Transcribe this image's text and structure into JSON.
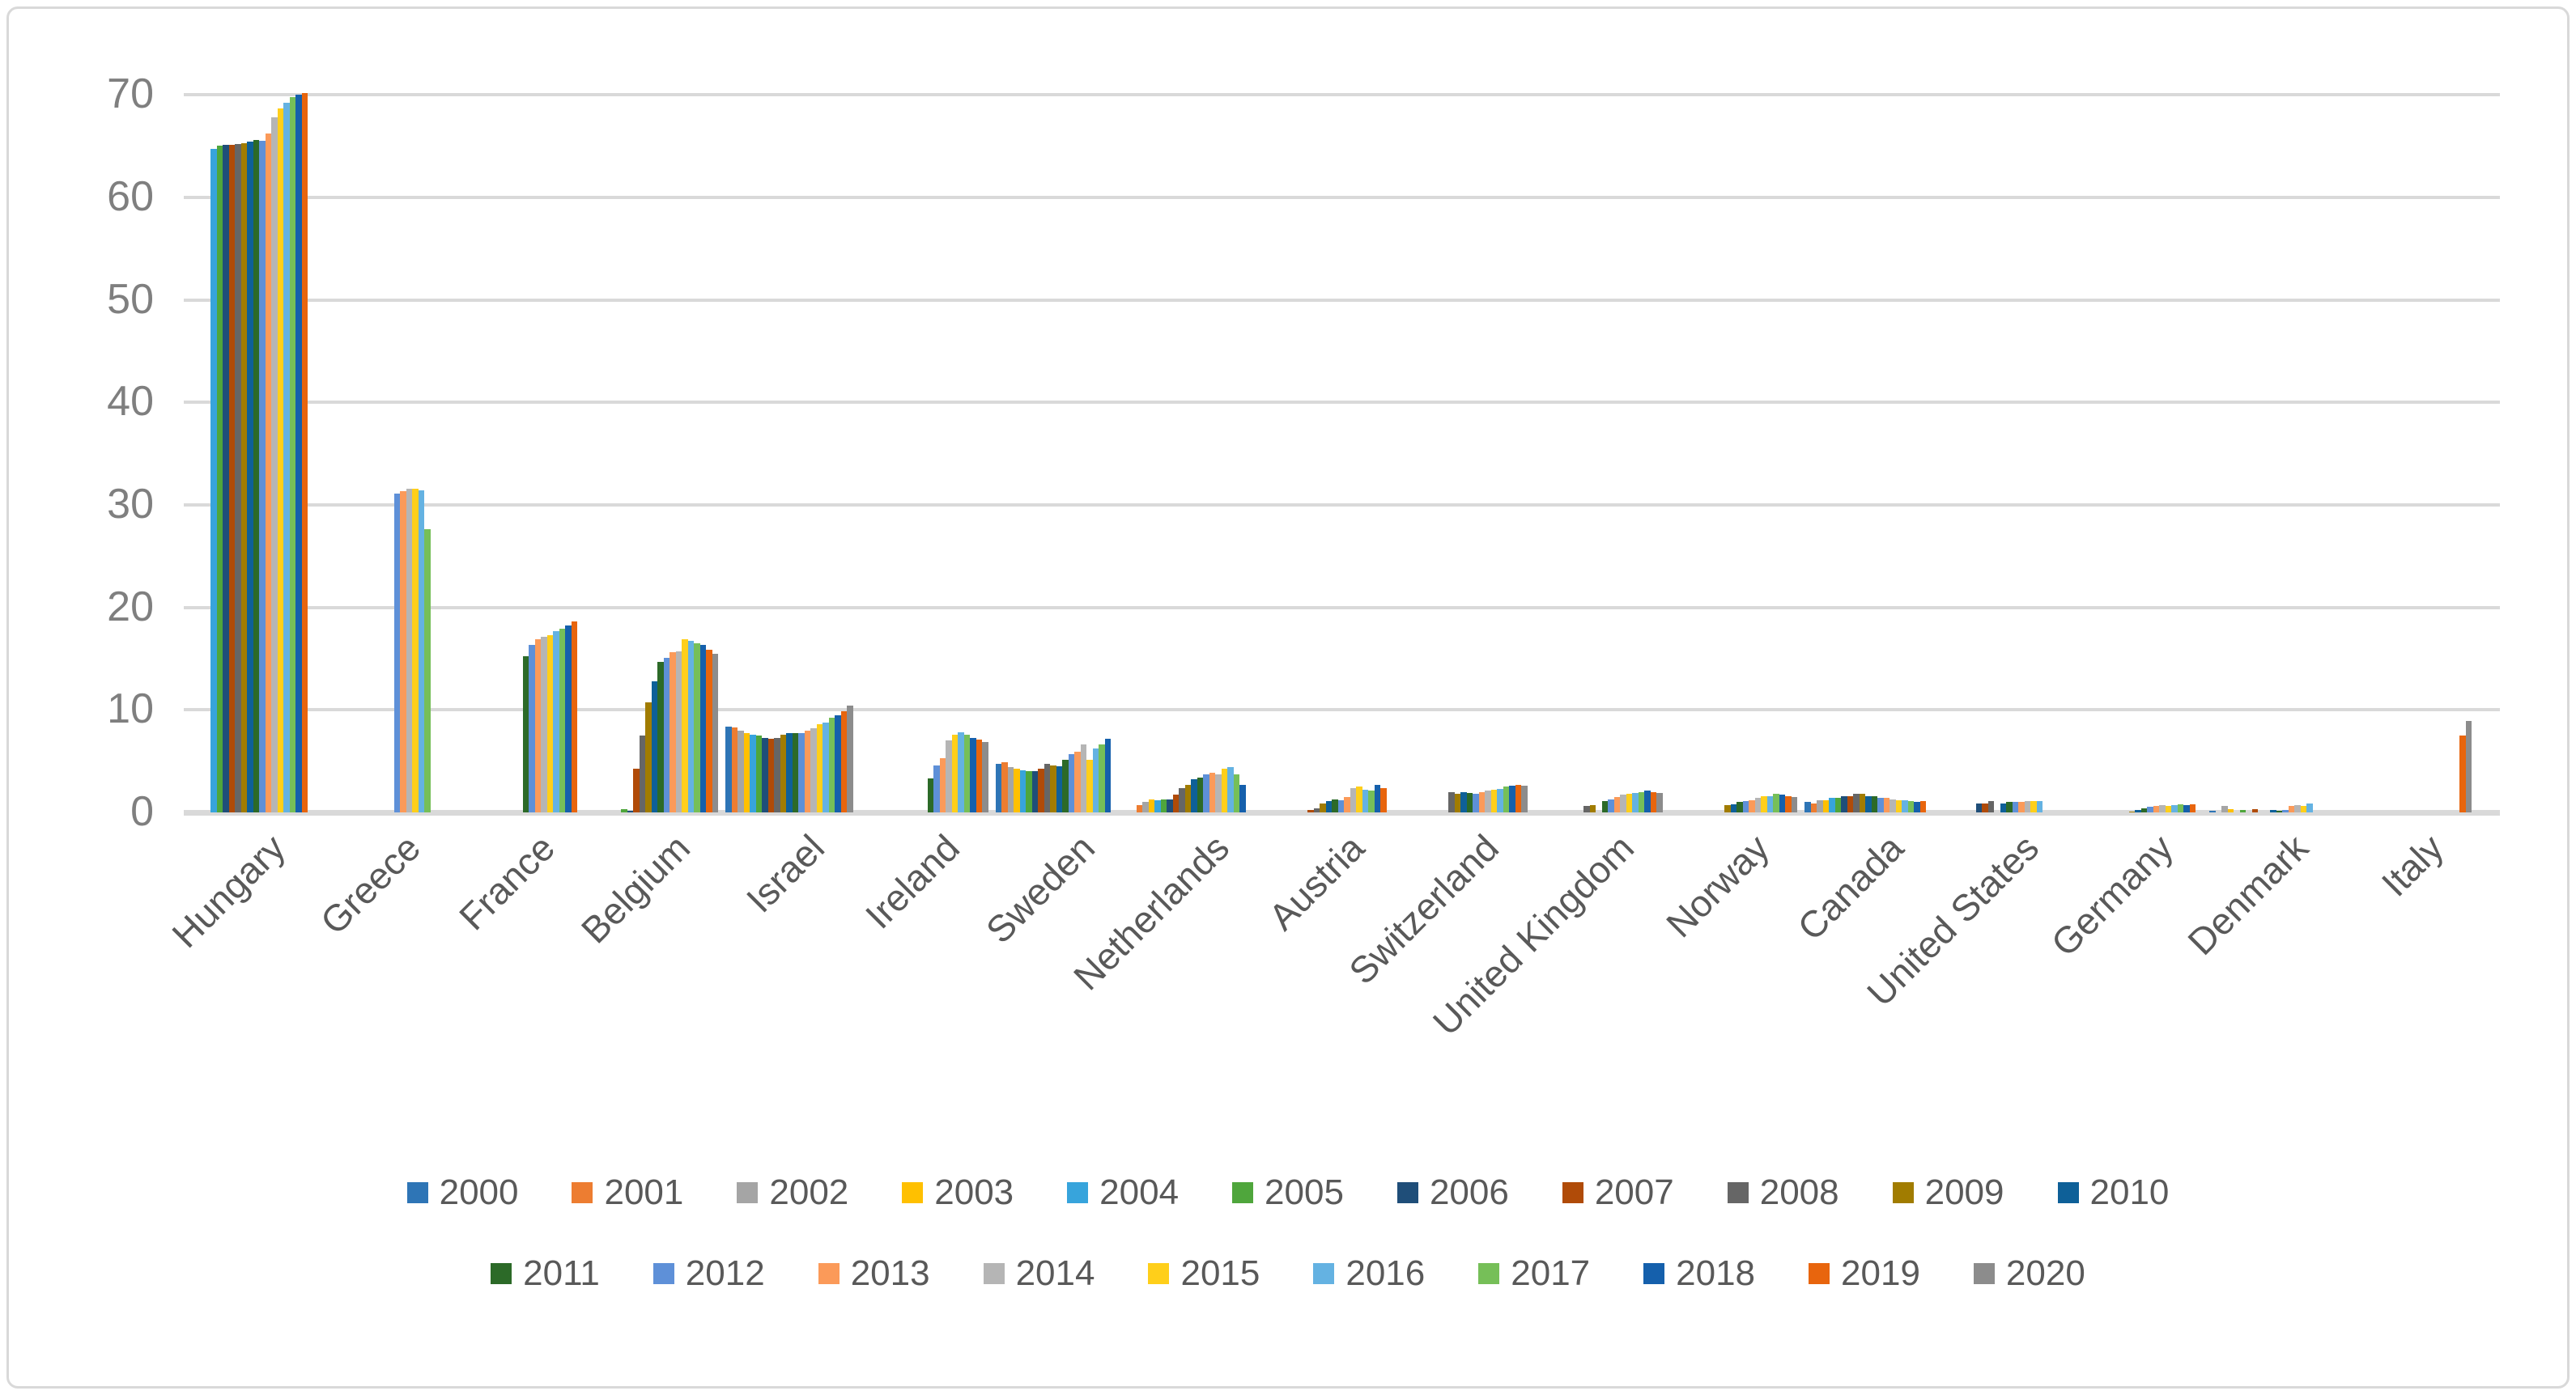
{
  "chart_data": {
    "type": "bar",
    "title": "",
    "xlabel": "",
    "ylabel": "",
    "ylim": [
      0,
      70
    ],
    "y_ticks": [
      0,
      10,
      20,
      30,
      40,
      50,
      60,
      70
    ],
    "grid": true,
    "legend_position": "bottom",
    "legend_rows": [
      [
        "2000",
        "2001",
        "2002",
        "2003",
        "2004",
        "2005",
        "2006",
        "2007",
        "2008",
        "2009",
        "2010"
      ],
      [
        "2011",
        "2012",
        "2013",
        "2014",
        "2015",
        "2016",
        "2017",
        "2018",
        "2019",
        "2020"
      ]
    ],
    "years": [
      "2000",
      "2001",
      "2002",
      "2003",
      "2004",
      "2005",
      "2006",
      "2007",
      "2008",
      "2009",
      "2010",
      "2011",
      "2012",
      "2013",
      "2014",
      "2015",
      "2016",
      "2017",
      "2018",
      "2019",
      "2020"
    ],
    "year_colors": {
      "2000": "#2E75B6",
      "2001": "#ED7D31",
      "2002": "#A5A5A5",
      "2003": "#FFC000",
      "2004": "#37A4DC",
      "2005": "#4FA63C",
      "2006": "#1F4E79",
      "2007": "#B04B08",
      "2008": "#666666",
      "2009": "#A17C00",
      "2010": "#0E6098",
      "2011": "#2C6A28",
      "2012": "#5E90D8",
      "2013": "#FB9A59",
      "2014": "#B5B5B5",
      "2015": "#FFCF1A",
      "2016": "#64B2E2",
      "2017": "#76BF58",
      "2018": "#1560AC",
      "2019": "#E8650D",
      "2020": "#8C8C8C"
    },
    "categories": [
      "Hungary",
      "Greece",
      "France",
      "Belgium",
      "Israel",
      "Ireland",
      "Sweden",
      "Netherlands",
      "Austria",
      "Switzerland",
      "United Kingdom",
      "Norway",
      "Canada",
      "United States",
      "Germany",
      "Denmark",
      "Italy"
    ],
    "values": {
      "Hungary": {
        "2004": 64.7,
        "2005": 65.0,
        "2006": 65.1,
        "2007": 65.1,
        "2008": 65.2,
        "2009": 65.3,
        "2010": 65.4,
        "2011": 65.6,
        "2012": 65.5,
        "2013": 66.2,
        "2014": 67.8,
        "2015": 68.7,
        "2016": 69.2,
        "2017": 69.8,
        "2018": 70.0,
        "2019": 70.2
      },
      "Greece": {
        "2012": 31.1,
        "2013": 31.3,
        "2014": 31.6,
        "2015": 31.6,
        "2016": 31.4,
        "2017": 27.6
      },
      "France": {
        "2011": 15.2,
        "2012": 16.3,
        "2013": 16.9,
        "2014": 17.1,
        "2015": 17.3,
        "2016": 17.7,
        "2017": 17.9,
        "2018": 18.2,
        "2019": 18.6
      },
      "Belgium": {
        "2005": 0.3,
        "2006": 0.15,
        "2007": 4.3,
        "2008": 7.5,
        "2009": 10.7,
        "2010": 12.8,
        "2011": 14.7,
        "2012": 15.1,
        "2013": 15.6,
        "2014": 15.7,
        "2015": 16.9,
        "2016": 16.7,
        "2017": 16.5,
        "2018": 16.3,
        "2019": 15.9,
        "2020": 15.5
      },
      "Israel": {
        "2000": 8.4,
        "2001": 8.3,
        "2002": 8.0,
        "2003": 7.7,
        "2004": 7.6,
        "2005": 7.5,
        "2006": 7.3,
        "2007": 7.2,
        "2008": 7.3,
        "2009": 7.6,
        "2010": 7.7,
        "2011": 7.7,
        "2012": 7.7,
        "2013": 8.0,
        "2014": 8.2,
        "2015": 8.6,
        "2016": 8.8,
        "2017": 9.2,
        "2018": 9.5,
        "2019": 9.9,
        "2020": 10.4
      },
      "Ireland": {
        "2011": 3.3,
        "2012": 4.6,
        "2013": 5.3,
        "2014": 7.0,
        "2015": 7.6,
        "2016": 7.8,
        "2017": 7.6,
        "2018": 7.3,
        "2019": 7.1,
        "2020": 6.9
      },
      "Sweden": {
        "2000": 4.7,
        "2001": 4.9,
        "2002": 4.4,
        "2003": 4.3,
        "2004": 4.1,
        "2005": 4.0,
        "2006": 4.0,
        "2007": 4.3,
        "2008": 4.7,
        "2009": 4.6,
        "2010": 4.5,
        "2011": 5.1,
        "2012": 5.7,
        "2013": 5.9,
        "2014": 6.6,
        "2015": 5.1,
        "2016": 6.2,
        "2017": 6.6,
        "2018": 7.2
      },
      "Netherlands": {
        "2001": 0.7,
        "2002": 1.0,
        "2003": 1.3,
        "2004": 1.2,
        "2005": 1.3,
        "2006": 1.3,
        "2007": 1.7,
        "2008": 2.4,
        "2009": 2.7,
        "2010": 3.2,
        "2011": 3.4,
        "2012": 3.7,
        "2013": 3.9,
        "2014": 3.7,
        "2015": 4.3,
        "2016": 4.4,
        "2017": 3.7,
        "2018": 2.7
      },
      "Austria": {
        "2007": 0.2,
        "2008": 0.4,
        "2009": 0.9,
        "2010": 1.1,
        "2011": 1.3,
        "2012": 1.2,
        "2013": 1.5,
        "2014": 2.4,
        "2015": 2.5,
        "2016": 2.2,
        "2017": 2.1,
        "2018": 2.7,
        "2019": 2.4
      },
      "Switzerland": {
        "2008": 2.0,
        "2009": 1.8,
        "2010": 2.0,
        "2011": 1.9,
        "2012": 1.8,
        "2013": 2.0,
        "2014": 2.1,
        "2015": 2.2,
        "2016": 2.3,
        "2017": 2.5,
        "2018": 2.6,
        "2019": 2.7,
        "2020": 2.6
      },
      "United Kingdom": {
        "2008": 0.6,
        "2009": 0.7,
        "2011": 1.1,
        "2012": 1.3,
        "2013": 1.5,
        "2014": 1.7,
        "2015": 1.8,
        "2016": 1.9,
        "2017": 2.0,
        "2018": 2.1,
        "2019": 2.0,
        "2020": 1.9
      },
      "Norway": {
        "2009": 0.7,
        "2010": 0.8,
        "2011": 1.0,
        "2012": 1.1,
        "2013": 1.2,
        "2014": 1.4,
        "2015": 1.6,
        "2016": 1.6,
        "2017": 1.8,
        "2018": 1.7,
        "2019": 1.6,
        "2020": 1.5
      },
      "Canada": {
        "2000": 1.0,
        "2001": 0.9,
        "2002": 1.2,
        "2003": 1.2,
        "2004": 1.4,
        "2005": 1.4,
        "2006": 1.6,
        "2007": 1.6,
        "2008": 1.8,
        "2009": 1.8,
        "2010": 1.6,
        "2011": 1.6,
        "2012": 1.4,
        "2013": 1.4,
        "2014": 1.3,
        "2015": 1.2,
        "2016": 1.2,
        "2017": 1.1,
        "2018": 1.0,
        "2019": 1.1
      },
      "United States": {
        "2006": 0.9,
        "2007": 0.9,
        "2008": 1.1,
        "2010": 0.9,
        "2011": 1.0,
        "2012": 1.0,
        "2013": 1.0,
        "2014": 1.1,
        "2015": 1.1,
        "2016": 1.1
      },
      "Germany": {
        "2009": 0.1,
        "2010": 0.25,
        "2011": 0.4,
        "2012": 0.55,
        "2013": 0.65,
        "2014": 0.7,
        "2015": 0.65,
        "2016": 0.7,
        "2017": 0.8,
        "2018": 0.75,
        "2019": 0.8
      },
      "Denmark": {
        "2000": 0.15,
        "2002": 0.6,
        "2003": 0.35,
        "2005": 0.2,
        "2007": 0.35,
        "2010": 0.2,
        "2011": 0.15,
        "2012": 0.2,
        "2013": 0.6,
        "2014": 0.7,
        "2015": 0.65,
        "2016": 0.9
      },
      "Italy": {
        "2019": 7.5,
        "2020": 8.9
      }
    },
    "style": {
      "gridline_color": "#D9D9D9",
      "axis_text_color": "#7F7F7F",
      "category_text_color": "#595959",
      "legend_text_color": "#595959",
      "background": "#FFFFFF"
    }
  }
}
